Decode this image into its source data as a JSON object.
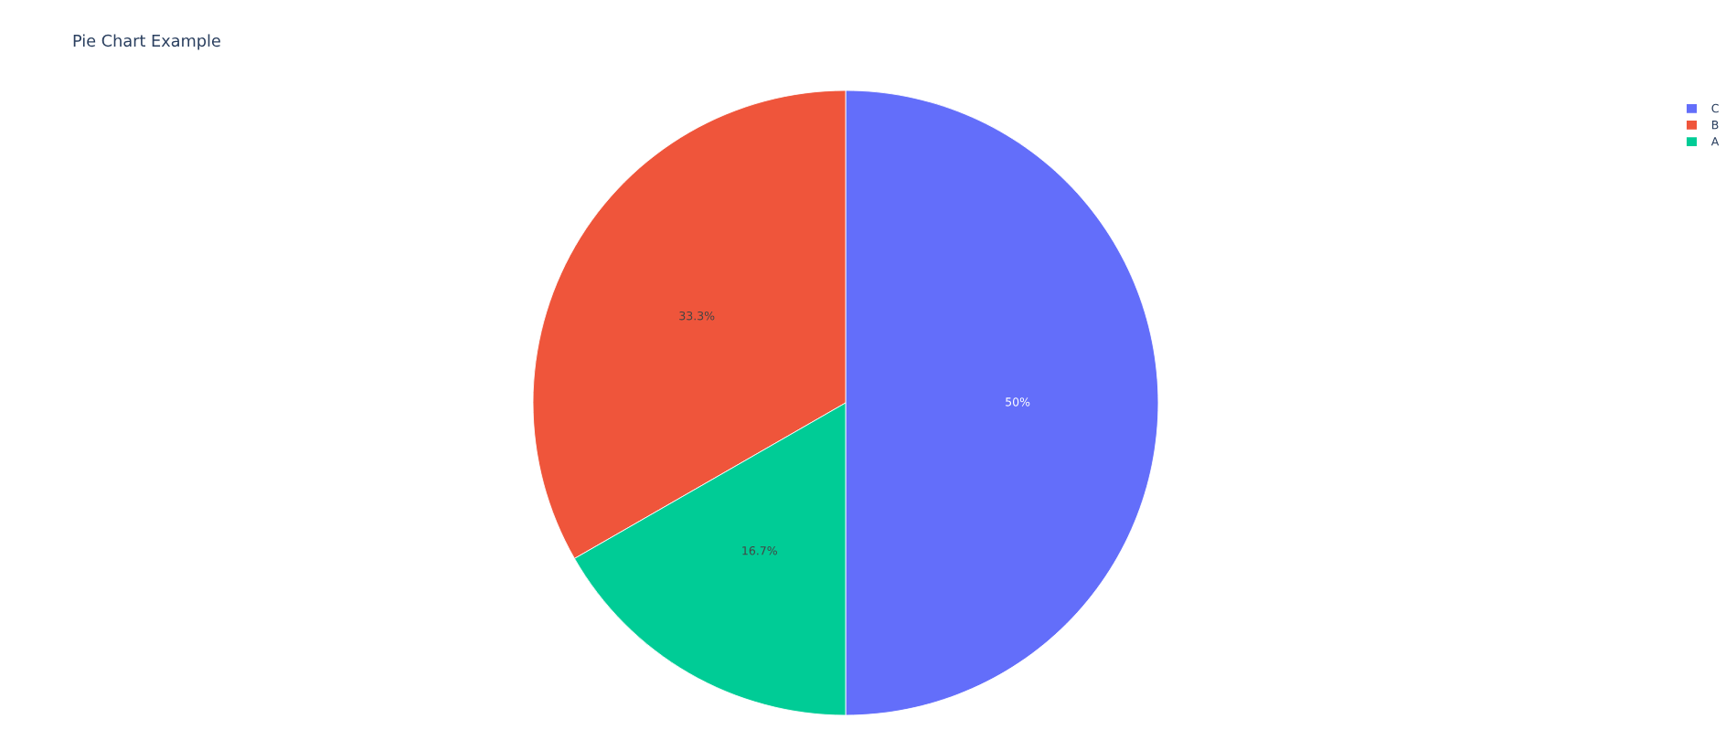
{
  "chart_data": {
    "type": "pie",
    "title": "Pie Chart Example",
    "categories": [
      "C",
      "B",
      "A"
    ],
    "values": [
      50,
      33.3,
      16.7
    ],
    "colors": [
      "#636efa",
      "#ef553b",
      "#00cc96"
    ],
    "value_labels": [
      "50%",
      "33.3%",
      "16.7%"
    ],
    "legend": "top right"
  }
}
